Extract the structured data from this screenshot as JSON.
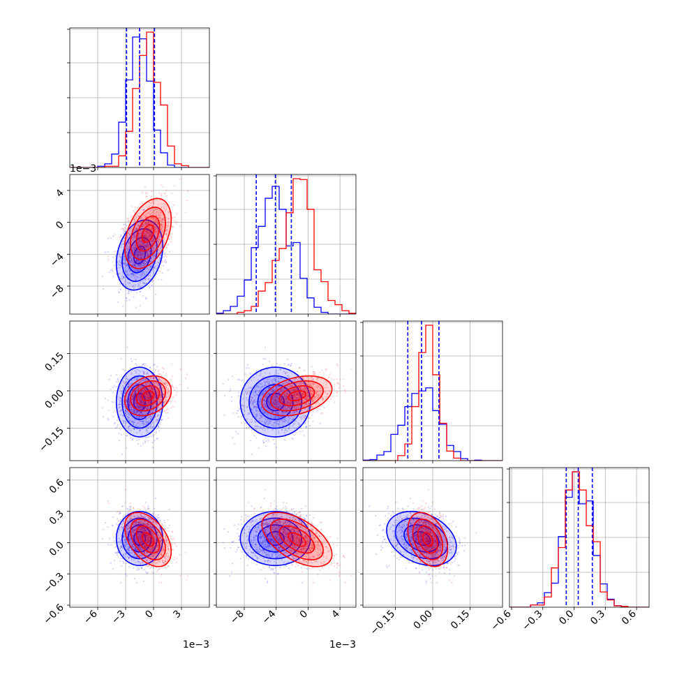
{
  "chart_data": {
    "type": "corner",
    "grid": true,
    "colors": {
      "blue": "#0000ff",
      "red": "#ff0000",
      "grid": "#b0b0b0"
    },
    "series": [
      {
        "color": "blue",
        "mean": [
          -0.0015,
          -0.0041,
          -0.045,
          0.04
        ],
        "sd": [
          0.00125,
          0.0022,
          0.07,
          0.13
        ],
        "corr": [
          [
            1,
            0.25,
            0,
            0
          ],
          [
            0.25,
            1,
            0,
            0
          ],
          [
            0,
            0,
            1,
            -0.3
          ],
          [
            0,
            0,
            -0.3,
            1
          ]
        ]
      },
      {
        "color": "red",
        "mean": [
          -0.0006,
          -0.0014,
          -0.02,
          0.03
        ],
        "sd": [
          0.00125,
          0.0022,
          0.04,
          0.13
        ],
        "corr": [
          [
            1,
            0.4,
            0.25,
            -0.45
          ],
          [
            0.4,
            1,
            0.35,
            -0.55
          ],
          [
            0.25,
            0.35,
            1,
            -0.35
          ],
          [
            -0.45,
            -0.55,
            -0.35,
            1
          ]
        ]
      }
    ],
    "quantile_lines": [
      [
        -0.0029,
        -0.0015,
        0.0001
      ],
      [
        -0.0065,
        -0.0041,
        -0.0021
      ],
      [
        -0.1,
        -0.045,
        0.025
      ],
      [
        -0.075,
        0.04,
        0.175
      ]
    ],
    "ranges": [
      [
        -0.009,
        0.006
      ],
      [
        -0.0115,
        0.006
      ],
      [
        -0.28,
        0.28
      ],
      [
        -0.62,
        0.72
      ]
    ],
    "ticks": [
      {
        "values": [
          -0.006,
          -0.003,
          0,
          0.003
        ],
        "labels": [
          "−6",
          "−3",
          "0",
          "3"
        ],
        "offset": "1e−3"
      },
      {
        "values": [
          -0.008,
          -0.004,
          0,
          0.004
        ],
        "labels": [
          "−8",
          "−4",
          "0",
          "4"
        ],
        "offset": "1e−3"
      },
      {
        "values": [
          -0.15,
          0,
          0.15
        ],
        "labels": [
          "−0.15",
          "0.00",
          "0.15"
        ],
        "offset": ""
      },
      {
        "values": [
          -0.6,
          -0.3,
          0,
          0.3,
          0.6
        ],
        "labels": [
          "−0.6",
          "−0.3",
          "0.0",
          "0.3",
          "0.6"
        ],
        "offset": ""
      }
    ]
  }
}
